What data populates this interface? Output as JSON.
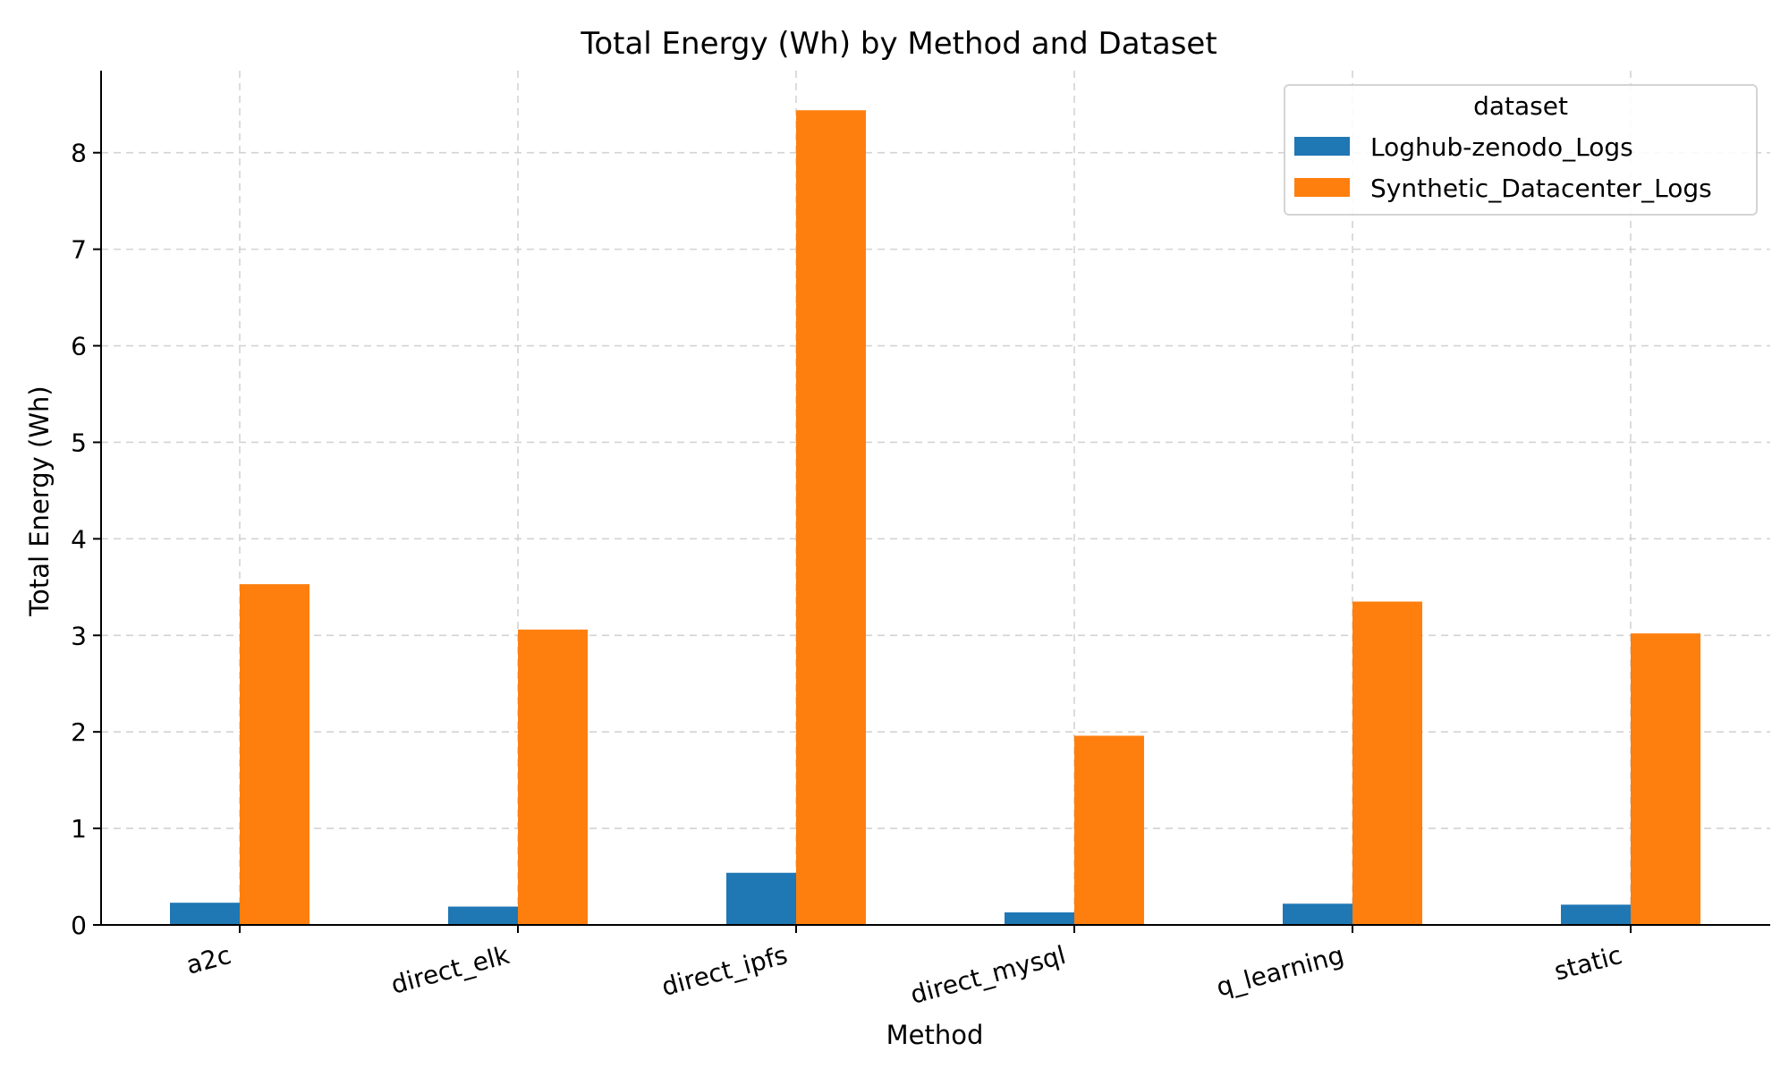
{
  "chart_data": {
    "type": "bar",
    "title": "Total Energy (Wh) by Method and Dataset",
    "xlabel": "Method",
    "ylabel": "Total Energy (Wh)",
    "categories": [
      "a2c",
      "direct_elk",
      "direct_ipfs",
      "direct_mysql",
      "q_learning",
      "static"
    ],
    "series": [
      {
        "name": "Loghub-zenodo_Logs",
        "color": "#1f77b4",
        "values": [
          0.23,
          0.19,
          0.54,
          0.13,
          0.22,
          0.21
        ]
      },
      {
        "name": "Synthetic_Datacenter_Logs",
        "color": "#ff7f0e",
        "values": [
          3.53,
          3.06,
          8.44,
          1.96,
          3.35,
          3.02
        ]
      }
    ],
    "ylim": [
      0,
      8.85
    ],
    "yticks": [
      "0",
      "1",
      "2",
      "3",
      "4",
      "5",
      "6",
      "7",
      "8"
    ],
    "grid": true,
    "legend": {
      "title": "dataset",
      "position": "top-right"
    },
    "xtick_rotation": -15
  }
}
